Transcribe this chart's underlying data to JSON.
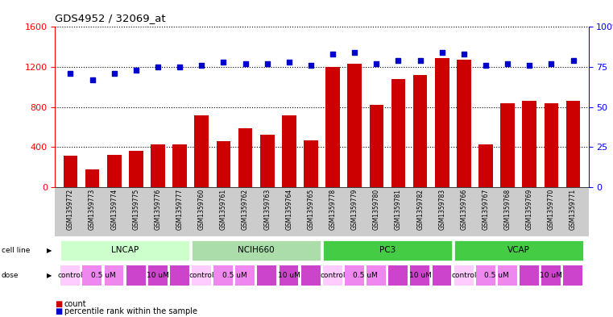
{
  "title": "GDS4952 / 32069_at",
  "samples": [
    "GSM1359772",
    "GSM1359773",
    "GSM1359774",
    "GSM1359775",
    "GSM1359776",
    "GSM1359777",
    "GSM1359760",
    "GSM1359761",
    "GSM1359762",
    "GSM1359763",
    "GSM1359764",
    "GSM1359765",
    "GSM1359778",
    "GSM1359779",
    "GSM1359780",
    "GSM1359781",
    "GSM1359782",
    "GSM1359783",
    "GSM1359766",
    "GSM1359767",
    "GSM1359768",
    "GSM1359769",
    "GSM1359770",
    "GSM1359771"
  ],
  "counts": [
    310,
    175,
    320,
    360,
    430,
    430,
    720,
    460,
    590,
    520,
    720,
    470,
    1200,
    1230,
    820,
    1080,
    1120,
    1290,
    1270,
    430,
    840,
    860,
    840,
    860
  ],
  "percentiles": [
    71,
    67,
    71,
    73,
    75,
    75,
    76,
    78,
    77,
    77,
    78,
    76,
    83,
    84,
    77,
    79,
    79,
    84,
    83,
    76,
    77,
    76,
    77,
    79
  ],
  "cell_lines": [
    {
      "label": "LNCAP",
      "start": 0,
      "end": 6,
      "color": "#ccffcc"
    },
    {
      "label": "NCIH660",
      "start": 6,
      "end": 12,
      "color": "#aaddaa"
    },
    {
      "label": "PC3",
      "start": 12,
      "end": 18,
      "color": "#44cc44"
    },
    {
      "label": "VCAP",
      "start": 18,
      "end": 24,
      "color": "#44cc44"
    }
  ],
  "dose_assignments": [
    "control",
    "0.5 uM",
    "0.5 uM",
    "10 uM",
    "10 uM",
    "10 uM",
    "control",
    "0.5 uM",
    "0.5 uM",
    "10 uM",
    "10 uM",
    "10 uM",
    "control",
    "0.5 uM",
    "0.5 uM",
    "10 uM",
    "10 uM",
    "10 uM",
    "control",
    "0.5 uM",
    "0.5 uM",
    "10 uM",
    "10 uM",
    "10 uM"
  ],
  "dose_colors": {
    "control": "#ffccff",
    "0.5 uM": "#ee88ee",
    "10 uM": "#cc44cc"
  },
  "dose_group_defs": [
    [
      0,
      "control",
      1
    ],
    [
      1,
      "0.5 uM",
      2
    ],
    [
      3,
      "10 uM",
      3
    ],
    [
      6,
      "control",
      1
    ],
    [
      7,
      "0.5 uM",
      2
    ],
    [
      9,
      "10 uM",
      3
    ],
    [
      12,
      "control",
      1
    ],
    [
      13,
      "0.5 uM",
      2
    ],
    [
      15,
      "10 uM",
      3
    ],
    [
      18,
      "control",
      1
    ],
    [
      19,
      "0.5 uM",
      2
    ],
    [
      21,
      "10 uM",
      3
    ]
  ],
  "bar_color": "#cc0000",
  "dot_color": "#0000cc",
  "ylim_left": [
    0,
    1600
  ],
  "ylim_right": [
    0,
    100
  ],
  "yticks_left": [
    0,
    400,
    800,
    1200,
    1600
  ],
  "yticks_right": [
    0,
    25,
    50,
    75,
    100
  ],
  "background_color": "#ffffff"
}
